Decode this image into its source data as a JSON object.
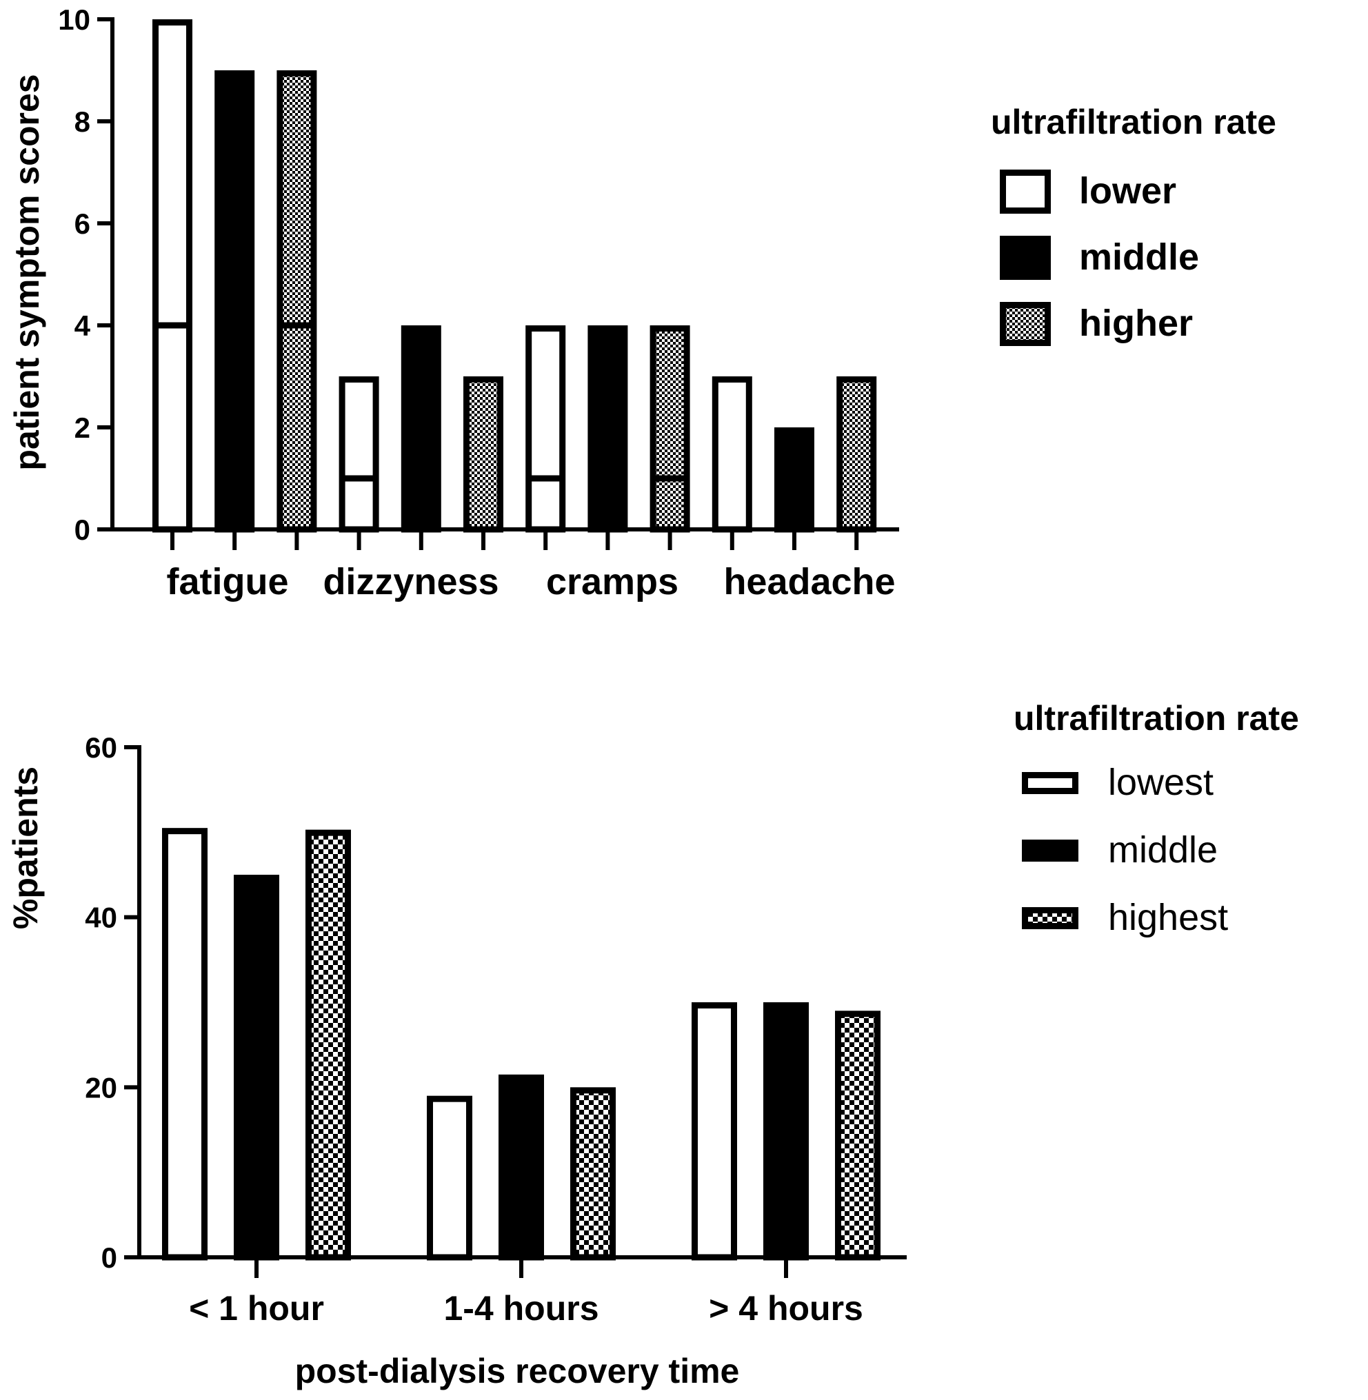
{
  "colors": {
    "ink": "#000000",
    "paper": "#ffffff"
  },
  "chart_data": [
    {
      "type": "bar",
      "ylabel": "patient symptom scores",
      "xlabel": "",
      "ylim": [
        0,
        10
      ],
      "yticks": [
        "0",
        "2",
        "4",
        "6",
        "8",
        "10"
      ],
      "categories": [
        "fatigue",
        "dizzyness",
        "cramps",
        "headache"
      ],
      "legend": {
        "title": "ultrafiltration rate",
        "placement": "top-right"
      },
      "series": [
        {
          "name": "lower",
          "fill": "white",
          "values": [
            10,
            3,
            4,
            3
          ],
          "inner_line": [
            4,
            1,
            1,
            null
          ]
        },
        {
          "name": "middle",
          "fill": "black",
          "values": [
            9,
            4,
            4,
            2
          ],
          "inner_line": [
            null,
            null,
            null,
            null
          ]
        },
        {
          "name": "higher",
          "fill": "checker",
          "values": [
            9,
            3,
            4,
            3
          ],
          "inner_line": [
            4,
            null,
            1,
            null
          ]
        }
      ],
      "grid": false
    },
    {
      "type": "bar",
      "ylabel": "%patients",
      "xlabel": "post-dialysis recovery time",
      "ylim": [
        0,
        60
      ],
      "yticks": [
        "0",
        "20",
        "40",
        "60"
      ],
      "categories": [
        "< 1 hour",
        "1-4 hours",
        "> 4 hours"
      ],
      "legend": {
        "title": "ultrafiltration rate",
        "placement": "top-right"
      },
      "series": [
        {
          "name": "lowest",
          "fill": "white",
          "values": [
            50.5,
            19,
            30
          ]
        },
        {
          "name": "middle",
          "fill": "black",
          "values": [
            45,
            21.5,
            30
          ]
        },
        {
          "name": "highest",
          "fill": "checker",
          "values": [
            50.3,
            20,
            29
          ]
        }
      ],
      "grid": false
    }
  ]
}
